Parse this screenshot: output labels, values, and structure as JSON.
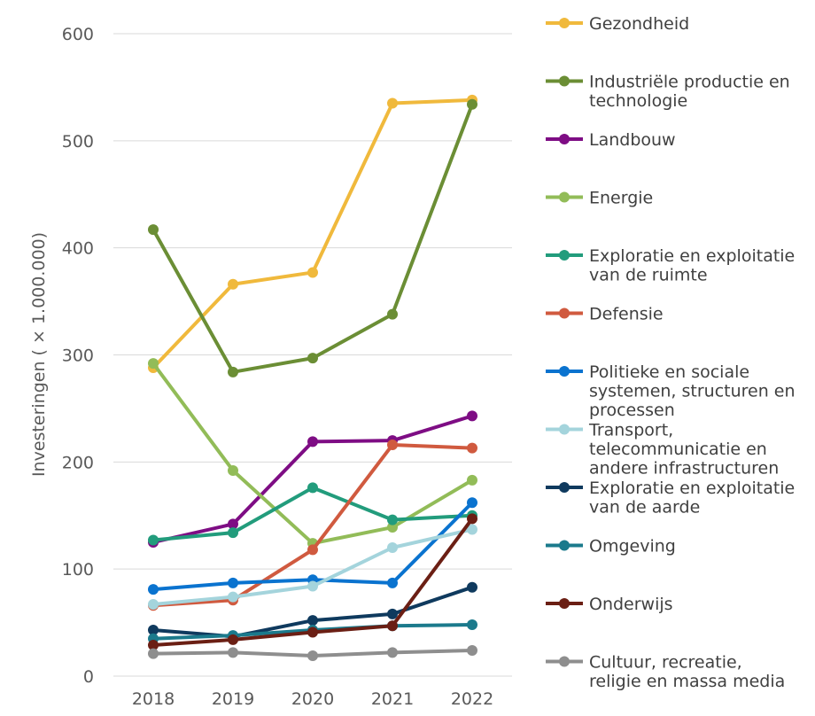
{
  "chart_data": {
    "type": "line",
    "title": "",
    "xlabel": "",
    "ylabel": "Investeringen ( × 1.000.000)",
    "x": [
      "2018",
      "2019",
      "2020",
      "2021",
      "2022"
    ],
    "yticks": [
      "0",
      "100",
      "200",
      "300",
      "400",
      "500",
      "600"
    ],
    "ylim": [
      0,
      600
    ],
    "grid": true,
    "legend_position": "right",
    "series": [
      {
        "name": "Gezondheid",
        "color": "#F0B93C",
        "values": [
          288,
          366,
          377,
          535,
          538
        ]
      },
      {
        "name": "Industriële productie en technologie",
        "color": "#6B8E35",
        "values": [
          417,
          284,
          297,
          338,
          534
        ]
      },
      {
        "name": "Landbouw",
        "color": "#7E0D84",
        "values": [
          125,
          142,
          219,
          220,
          243
        ]
      },
      {
        "name": "Energie",
        "color": "#92BC58",
        "values": [
          292,
          192,
          124,
          139,
          183
        ]
      },
      {
        "name": "Exploratie en exploitatie van de ruimte",
        "color": "#229C7C",
        "values": [
          127,
          134,
          176,
          146,
          150
        ]
      },
      {
        "name": "Defensie",
        "color": "#D05A3F",
        "values": [
          66,
          71,
          118,
          216,
          213
        ]
      },
      {
        "name": "Politieke en sociale systemen, structuren en processen",
        "color": "#0A73CF",
        "values": [
          81,
          87,
          90,
          87,
          162
        ]
      },
      {
        "name": "Transport, telecommunicatie en andere infrastructuren",
        "color": "#A4D4DC",
        "values": [
          67,
          74,
          84,
          120,
          137
        ]
      },
      {
        "name": "Exploratie en exploitatie van de aarde",
        "color": "#0F3A5E",
        "values": [
          43,
          37,
          52,
          58,
          83
        ]
      },
      {
        "name": "Omgeving",
        "color": "#1B7A8C",
        "values": [
          35,
          38,
          43,
          47,
          48
        ]
      },
      {
        "name": "Onderwijs",
        "color": "#6B1F14",
        "values": [
          29,
          34,
          41,
          47,
          147
        ]
      },
      {
        "name": "Cultuur, recreatie, religie en massa media",
        "color": "#8E8E8E",
        "values": [
          21,
          22,
          19,
          22,
          24
        ]
      }
    ]
  }
}
